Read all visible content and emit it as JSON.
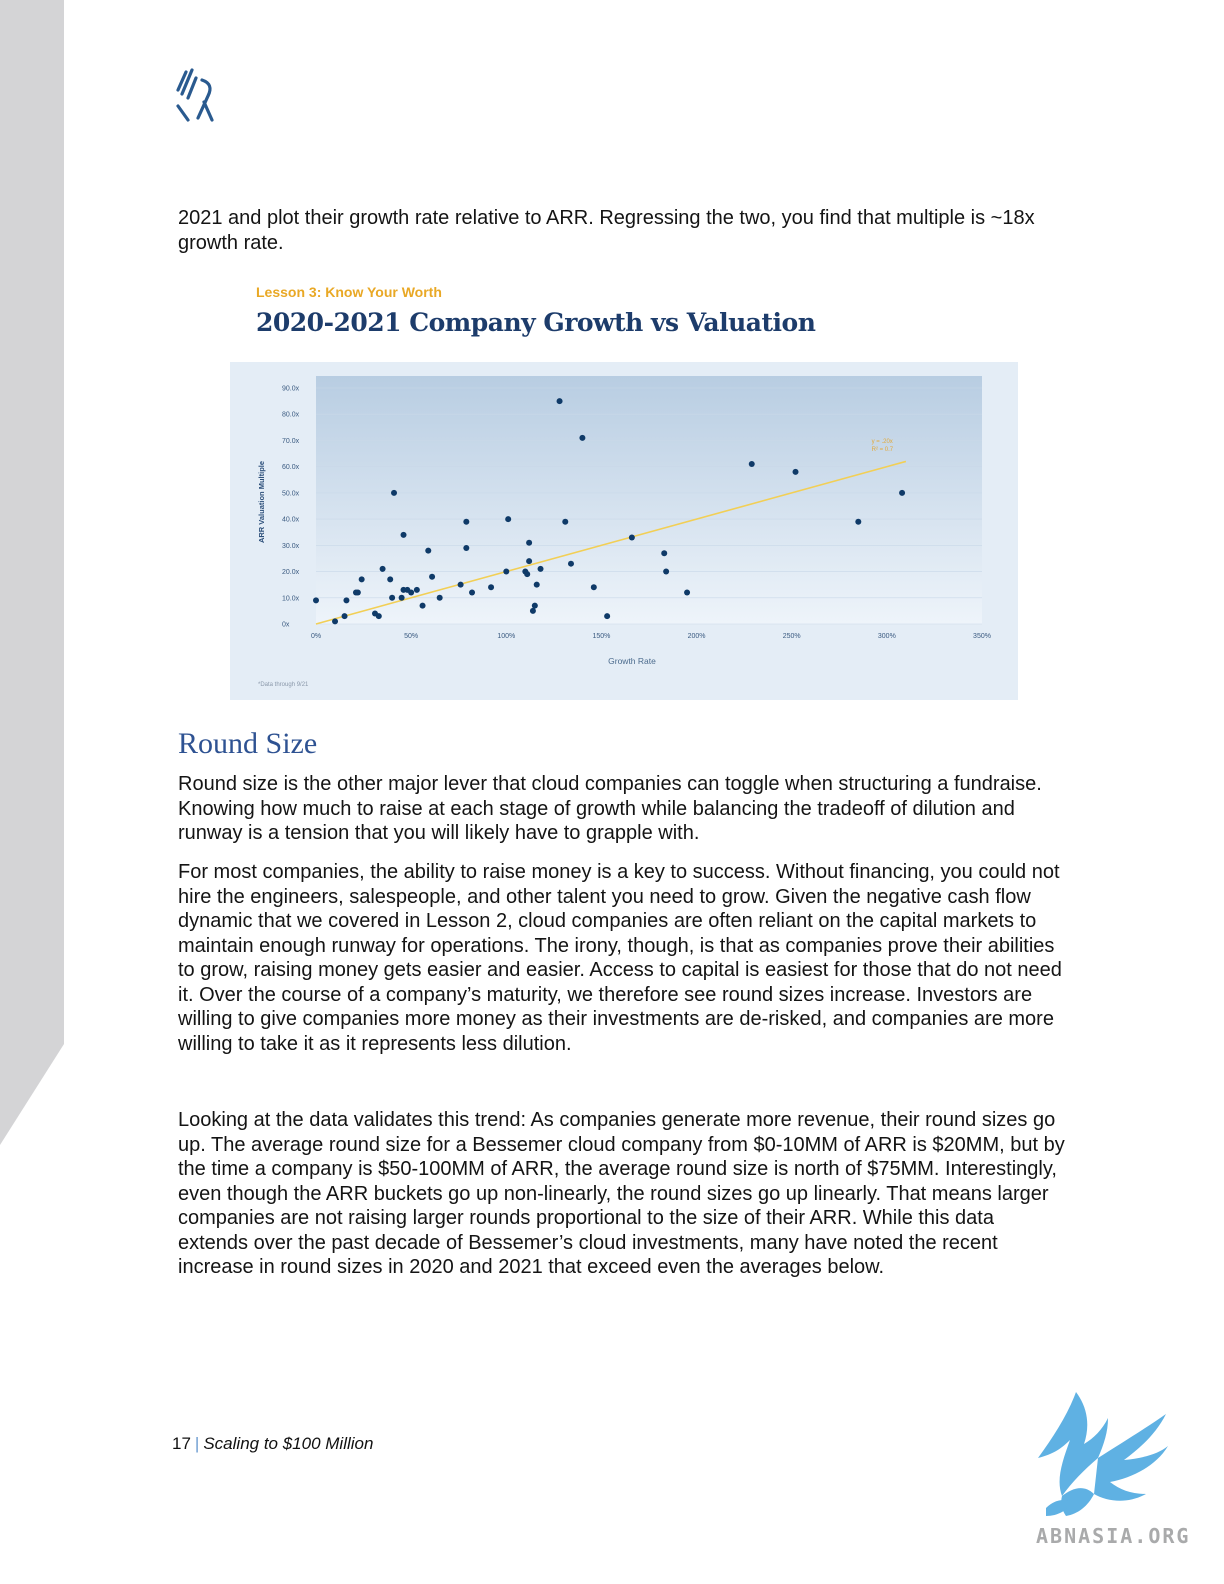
{
  "page": {
    "intro": "2021 and plot their growth rate relative to ARR. Regressing the two, you find that multiple is ~18x growth rate.",
    "figure": {
      "kicker": "Lesson 3: Know Your Worth",
      "title": "2020-2021 Company Growth vs Valuation",
      "footnote": "*Data through 9/21"
    },
    "section_heading": "Round Size",
    "paragraphs": [
      "Round size is the other major lever that cloud companies can toggle when structuring a fundraise. Knowing how much to raise at each stage of growth while balancing the tradeoff of dilution and runway is a tension that you will likely have to grapple with.",
      "For most companies, the ability to raise money is a key to success. Without financing, you could not hire the engineers, salespeople, and other talent you need to grow. Given the negative cash flow dynamic that we covered in Lesson 2, cloud companies are often reliant on the capital markets to maintain enough runway for operations. The irony, though, is that as companies prove their abilities to grow, raising money gets easier and easier. Access to capital is easiest for those that do not need it. Over the course of a company’s maturity, we therefore see round sizes increase. Investors are willing to give companies more money as their investments are de-risked, and companies are more willing to take it as it represents less dilution.",
      "Looking at the data validates this trend: As companies generate more revenue, their round sizes go up. The average round size for a Bessemer cloud company from $0-10MM of ARR is $20MM, but by the time a company is $50-100MM of ARR, the average round size is north of $75MM. Interestingly, even though the ARR buckets go up non-linearly, the round sizes go up linearly. That means larger companies are not raising larger rounds proportional to the size of their ARR. While this data extends over the past decade of Bessemer’s cloud investments, many have noted the recent increase in round sizes in 2020 and 2021 that exceed even the averages below."
    ],
    "footer": {
      "page_number": "17",
      "separator": "|",
      "doc_title": "Scaling to $100 Million"
    },
    "watermark_text": "ABNASIA.ORG"
  },
  "colors": {
    "accent_blue": "#2e5292",
    "navy": "#1d3c6b",
    "gold": "#e9a825",
    "point": "#0f3a68",
    "trend": "#f2cf55",
    "sidebar_gray": "#d4d4d6",
    "watermark_blue": "#5fb1e3"
  },
  "chart_data": {
    "type": "scatter",
    "title": "2020-2021 Company Growth vs Valuation",
    "xlabel": "Growth Rate",
    "ylabel": "ARR Valuation Multiple",
    "xlim": [
      0,
      350
    ],
    "ylim": [
      0,
      90
    ],
    "x_ticks": [
      "0%",
      "50%",
      "100%",
      "150%",
      "200%",
      "250%",
      "300%",
      "350%"
    ],
    "y_ticks": [
      "0x",
      "10.0x",
      "20.0x",
      "30.0x",
      "40.0x",
      "50.0x",
      "60.0x",
      "70.0x",
      "80.0x",
      "90.0x"
    ],
    "trendline": {
      "x": [
        0,
        310
      ],
      "y": [
        0,
        62
      ],
      "label_lines": [
        "y = .20x",
        "R² = 0.7"
      ]
    },
    "points": [
      {
        "x": 0,
        "y": 9
      },
      {
        "x": 10,
        "y": 1
      },
      {
        "x": 15,
        "y": 3
      },
      {
        "x": 16,
        "y": 9
      },
      {
        "x": 21,
        "y": 12
      },
      {
        "x": 22,
        "y": 12
      },
      {
        "x": 24,
        "y": 17
      },
      {
        "x": 31,
        "y": 4
      },
      {
        "x": 33,
        "y": 3
      },
      {
        "x": 35,
        "y": 21
      },
      {
        "x": 39,
        "y": 17
      },
      {
        "x": 40,
        "y": 10
      },
      {
        "x": 41,
        "y": 50
      },
      {
        "x": 45,
        "y": 10
      },
      {
        "x": 46,
        "y": 13
      },
      {
        "x": 46,
        "y": 34
      },
      {
        "x": 48,
        "y": 13
      },
      {
        "x": 50,
        "y": 12
      },
      {
        "x": 53,
        "y": 13
      },
      {
        "x": 56,
        "y": 7
      },
      {
        "x": 59,
        "y": 28
      },
      {
        "x": 61,
        "y": 18
      },
      {
        "x": 65,
        "y": 10
      },
      {
        "x": 76,
        "y": 15
      },
      {
        "x": 79,
        "y": 29
      },
      {
        "x": 79,
        "y": 39
      },
      {
        "x": 82,
        "y": 12
      },
      {
        "x": 92,
        "y": 14
      },
      {
        "x": 100,
        "y": 20
      },
      {
        "x": 101,
        "y": 40
      },
      {
        "x": 110,
        "y": 20
      },
      {
        "x": 111,
        "y": 19
      },
      {
        "x": 112,
        "y": 24
      },
      {
        "x": 112,
        "y": 31
      },
      {
        "x": 114,
        "y": 5
      },
      {
        "x": 115,
        "y": 7
      },
      {
        "x": 116,
        "y": 15
      },
      {
        "x": 118,
        "y": 21
      },
      {
        "x": 128,
        "y": 85
      },
      {
        "x": 131,
        "y": 39
      },
      {
        "x": 134,
        "y": 23
      },
      {
        "x": 140,
        "y": 71
      },
      {
        "x": 146,
        "y": 14
      },
      {
        "x": 153,
        "y": 3
      },
      {
        "x": 166,
        "y": 33
      },
      {
        "x": 183,
        "y": 27
      },
      {
        "x": 184,
        "y": 20
      },
      {
        "x": 195,
        "y": 12
      },
      {
        "x": 229,
        "y": 61
      },
      {
        "x": 252,
        "y": 58
      },
      {
        "x": 285,
        "y": 39
      },
      {
        "x": 308,
        "y": 50
      }
    ]
  }
}
